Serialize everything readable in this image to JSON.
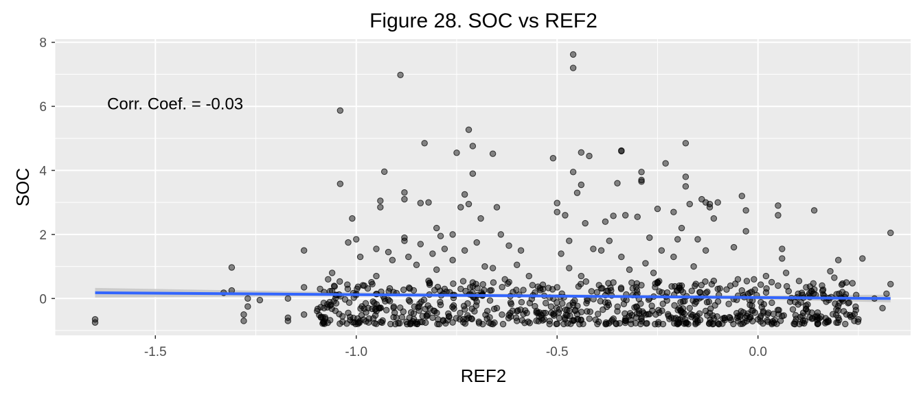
{
  "chart_data": {
    "type": "scatter",
    "title": "Figure 28. SOC vs REF2",
    "xlabel": "REF2",
    "ylabel": "SOC",
    "xlim": [
      -1.75,
      0.38
    ],
    "ylim": [
      -1.15,
      8.1
    ],
    "x_ticks": [
      -1.5,
      -1.0,
      -0.5,
      0.0
    ],
    "x_tick_labels": [
      "-1.5",
      "-1.0",
      "-0.5",
      "0.0"
    ],
    "y_ticks": [
      0,
      2,
      4,
      6,
      8
    ],
    "y_tick_labels": [
      "0",
      "2",
      "4",
      "6",
      "8"
    ],
    "grid": true,
    "annotation": {
      "text": "Corr. Coef. = -0.03",
      "x": -1.62,
      "y": 5.9
    },
    "colors": {
      "panel": "#ebebeb",
      "grid": "#ffffff",
      "points": "#000000",
      "trend_line": "#3366ff",
      "confidence_band": "#c8c8c8"
    },
    "trend": {
      "x": [
        -1.65,
        0.33
      ],
      "y": [
        0.18,
        0.0
      ]
    },
    "confidence_band": {
      "x": [
        -1.65,
        -1.0,
        -0.5,
        0.0,
        0.33
      ],
      "lower": [
        0.03,
        0.08,
        0.04,
        -0.03,
        -0.12
      ],
      "upper": [
        0.33,
        0.19,
        0.13,
        0.09,
        0.12
      ]
    },
    "points": [
      [
        -1.65,
        -0.65
      ],
      [
        -1.65,
        -0.75
      ],
      [
        -1.31,
        0.97
      ],
      [
        -1.31,
        0.25
      ],
      [
        -1.33,
        0.18
      ],
      [
        -1.28,
        -0.7
      ],
      [
        -1.28,
        -0.5
      ],
      [
        -1.27,
        -0.25
      ],
      [
        -1.27,
        0.0
      ],
      [
        -1.24,
        -0.05
      ],
      [
        -1.17,
        -0.6
      ],
      [
        -1.17,
        -0.7
      ],
      [
        -1.17,
        0.0
      ],
      [
        -1.13,
        1.5
      ],
      [
        -1.13,
        0.35
      ],
      [
        -1.13,
        -0.5
      ],
      [
        -1.04,
        5.87
      ],
      [
        -1.04,
        3.58
      ],
      [
        -1.0,
        1.85
      ],
      [
        -1.01,
        2.5
      ],
      [
        -1.02,
        1.75
      ],
      [
        -1.06,
        0.8
      ],
      [
        -1.07,
        0.6
      ],
      [
        -1.08,
        0.2
      ],
      [
        -1.08,
        -0.3
      ],
      [
        -1.09,
        0.3
      ],
      [
        -1.05,
        -0.15
      ],
      [
        -1.02,
        -0.45
      ],
      [
        -1.0,
        0.15
      ],
      [
        -0.99,
        1.3
      ],
      [
        -0.98,
        0.4
      ],
      [
        -0.97,
        -0.3
      ],
      [
        -0.89,
        6.98
      ],
      [
        -0.93,
        3.96
      ],
      [
        -0.88,
        3.31
      ],
      [
        -0.88,
        3.1
      ],
      [
        -0.94,
        3.05
      ],
      [
        -0.94,
        2.85
      ],
      [
        -0.95,
        1.55
      ],
      [
        -0.88,
        1.9
      ],
      [
        -0.88,
        1.8
      ],
      [
        -0.87,
        1.3
      ],
      [
        -0.91,
        1.2
      ],
      [
        -0.92,
        1.45
      ],
      [
        -0.95,
        0.7
      ],
      [
        -0.96,
        0.45
      ],
      [
        -0.93,
        0.0
      ],
      [
        -0.9,
        -0.6
      ],
      [
        -0.83,
        4.85
      ],
      [
        -0.82,
        3.0
      ],
      [
        -0.84,
        2.98
      ],
      [
        -0.8,
        2.2
      ],
      [
        -0.79,
        1.95
      ],
      [
        -0.81,
        1.4
      ],
      [
        -0.78,
        1.55
      ],
      [
        -0.84,
        1.7
      ],
      [
        -0.85,
        1.05
      ],
      [
        -0.82,
        0.55
      ],
      [
        -0.8,
        0.9
      ],
      [
        -0.78,
        0.3
      ],
      [
        -0.76,
        1.2
      ],
      [
        -0.79,
        -0.2
      ],
      [
        -0.81,
        -0.6
      ],
      [
        -0.72,
        5.27
      ],
      [
        -0.71,
        4.76
      ],
      [
        -0.75,
        4.55
      ],
      [
        -0.71,
        3.9
      ],
      [
        -0.73,
        3.25
      ],
      [
        -0.72,
        2.95
      ],
      [
        -0.69,
        2.5
      ],
      [
        -0.74,
        2.85
      ],
      [
        -0.76,
        2.0
      ],
      [
        -0.7,
        1.75
      ],
      [
        -0.73,
        1.5
      ],
      [
        -0.68,
        1.0
      ],
      [
        -0.71,
        0.5
      ],
      [
        -0.74,
        0.3
      ],
      [
        -0.7,
        -0.1
      ],
      [
        -0.72,
        -0.6
      ],
      [
        -0.66,
        4.52
      ],
      [
        -0.65,
        2.85
      ],
      [
        -0.62,
        1.65
      ],
      [
        -0.64,
        2.0
      ],
      [
        -0.6,
        1.05
      ],
      [
        -0.66,
        0.95
      ],
      [
        -0.63,
        0.6
      ],
      [
        -0.59,
        1.5
      ],
      [
        -0.61,
        0.2
      ],
      [
        -0.65,
        -0.3
      ],
      [
        -0.6,
        -0.7
      ],
      [
        -0.57,
        0.7
      ],
      [
        -0.56,
        0.1
      ],
      [
        -0.46,
        7.62
      ],
      [
        -0.46,
        7.2
      ],
      [
        -0.44,
        4.56
      ],
      [
        -0.42,
        4.45
      ],
      [
        -0.46,
        3.95
      ],
      [
        -0.44,
        3.55
      ],
      [
        -0.45,
        3.3
      ],
      [
        -0.5,
        2.98
      ],
      [
        -0.5,
        2.7
      ],
      [
        -0.48,
        2.6
      ],
      [
        -0.51,
        4.38
      ],
      [
        -0.47,
        1.8
      ],
      [
        -0.49,
        1.4
      ],
      [
        -0.43,
        2.35
      ],
      [
        -0.41,
        1.55
      ],
      [
        -0.47,
        0.95
      ],
      [
        -0.44,
        0.7
      ],
      [
        -0.5,
        0.35
      ],
      [
        -0.46,
        -0.2
      ],
      [
        -0.48,
        -0.65
      ],
      [
        -0.34,
        4.6
      ],
      [
        -0.34,
        4.62
      ],
      [
        -0.35,
        3.6
      ],
      [
        -0.36,
        2.58
      ],
      [
        -0.38,
        2.4
      ],
      [
        -0.33,
        2.6
      ],
      [
        -0.37,
        1.8
      ],
      [
        -0.39,
        1.5
      ],
      [
        -0.34,
        1.3
      ],
      [
        -0.32,
        0.9
      ],
      [
        -0.36,
        0.5
      ],
      [
        -0.38,
        0.1
      ],
      [
        -0.35,
        -0.4
      ],
      [
        -0.33,
        -0.7
      ],
      [
        -0.29,
        3.95
      ],
      [
        -0.29,
        3.7
      ],
      [
        -0.29,
        3.65
      ],
      [
        -0.23,
        4.22
      ],
      [
        -0.3,
        2.55
      ],
      [
        -0.25,
        2.8
      ],
      [
        -0.27,
        1.9
      ],
      [
        -0.24,
        1.5
      ],
      [
        -0.28,
        1.1
      ],
      [
        -0.26,
        0.8
      ],
      [
        -0.25,
        0.5
      ],
      [
        -0.27,
        0.0
      ],
      [
        -0.29,
        -0.6
      ],
      [
        -0.18,
        4.85
      ],
      [
        -0.18,
        3.8
      ],
      [
        -0.18,
        3.5
      ],
      [
        -0.17,
        2.95
      ],
      [
        -0.21,
        2.7
      ],
      [
        -0.19,
        2.2
      ],
      [
        -0.2,
        1.85
      ],
      [
        -0.21,
        1.3
      ],
      [
        -0.16,
        1.0
      ],
      [
        -0.19,
        0.4
      ],
      [
        -0.2,
        0.25
      ],
      [
        -0.17,
        -0.3
      ],
      [
        -0.15,
        -0.75
      ],
      [
        -0.14,
        3.1
      ],
      [
        -0.13,
        3.0
      ],
      [
        -0.12,
        2.95
      ],
      [
        -0.12,
        2.85
      ],
      [
        -0.1,
        3.0
      ],
      [
        -0.11,
        2.5
      ],
      [
        -0.15,
        1.85
      ],
      [
        -0.13,
        1.5
      ],
      [
        -0.11,
        0.55
      ],
      [
        -0.1,
        0.3
      ],
      [
        -0.12,
        -0.45
      ],
      [
        -0.04,
        3.2
      ],
      [
        -0.03,
        2.75
      ],
      [
        -0.03,
        2.1
      ],
      [
        -0.06,
        1.6
      ],
      [
        -0.05,
        0.6
      ],
      [
        -0.04,
        0.25
      ],
      [
        -0.02,
        -0.2
      ],
      [
        -0.05,
        -0.55
      ],
      [
        -0.01,
        0.6
      ],
      [
        0.02,
        0.7
      ],
      [
        0.0,
        -0.65
      ],
      [
        0.05,
        2.9
      ],
      [
        0.05,
        2.6
      ],
      [
        0.06,
        1.55
      ],
      [
        0.06,
        1.25
      ],
      [
        0.07,
        0.8
      ],
      [
        0.05,
        0.4
      ],
      [
        0.08,
        -0.1
      ],
      [
        0.06,
        -0.55
      ],
      [
        0.1,
        0.15
      ],
      [
        0.14,
        2.75
      ],
      [
        0.12,
        0.35
      ],
      [
        0.18,
        0.85
      ],
      [
        0.19,
        0.65
      ],
      [
        0.2,
        1.2
      ],
      [
        0.21,
        0.2
      ],
      [
        0.22,
        0.5
      ],
      [
        0.17,
        -0.1
      ],
      [
        0.2,
        -0.6
      ],
      [
        0.26,
        1.25
      ],
      [
        0.25,
        -0.65
      ],
      [
        0.24,
        -0.7
      ],
      [
        0.29,
        0.0
      ],
      [
        0.31,
        -0.3
      ],
      [
        0.33,
        2.05
      ],
      [
        0.33,
        0.45
      ],
      [
        0.32,
        0.15
      ]
    ],
    "dense_band": {
      "x_min": -1.1,
      "x_max": 0.25,
      "y_min": -0.8,
      "y_max": 0.55,
      "count": 720
    }
  }
}
